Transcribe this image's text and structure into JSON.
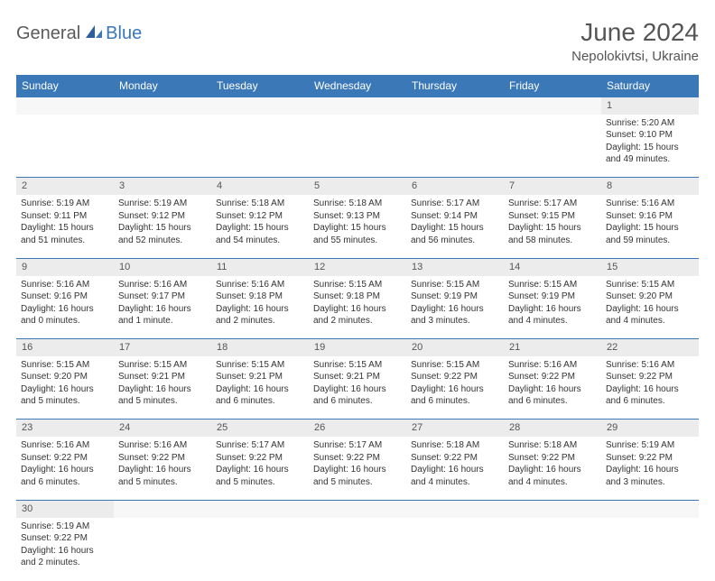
{
  "brand": {
    "part1": "General",
    "part2": "Blue"
  },
  "title": "June 2024",
  "location": "Nepolokivtsi, Ukraine",
  "colors": {
    "header_bg": "#3b78b8",
    "header_text": "#ffffff",
    "daynum_bg": "#ececec",
    "border": "#3b78b8",
    "brand_gray": "#5a5a5a",
    "brand_blue": "#3b78b8"
  },
  "dayHeaders": [
    "Sunday",
    "Monday",
    "Tuesday",
    "Wednesday",
    "Thursday",
    "Friday",
    "Saturday"
  ],
  "weeks": [
    [
      null,
      null,
      null,
      null,
      null,
      null,
      {
        "n": "1",
        "sr": "5:20 AM",
        "ss": "9:10 PM",
        "dl": "15 hours and 49 minutes."
      }
    ],
    [
      {
        "n": "2",
        "sr": "5:19 AM",
        "ss": "9:11 PM",
        "dl": "15 hours and 51 minutes."
      },
      {
        "n": "3",
        "sr": "5:19 AM",
        "ss": "9:12 PM",
        "dl": "15 hours and 52 minutes."
      },
      {
        "n": "4",
        "sr": "5:18 AM",
        "ss": "9:12 PM",
        "dl": "15 hours and 54 minutes."
      },
      {
        "n": "5",
        "sr": "5:18 AM",
        "ss": "9:13 PM",
        "dl": "15 hours and 55 minutes."
      },
      {
        "n": "6",
        "sr": "5:17 AM",
        "ss": "9:14 PM",
        "dl": "15 hours and 56 minutes."
      },
      {
        "n": "7",
        "sr": "5:17 AM",
        "ss": "9:15 PM",
        "dl": "15 hours and 58 minutes."
      },
      {
        "n": "8",
        "sr": "5:16 AM",
        "ss": "9:16 PM",
        "dl": "15 hours and 59 minutes."
      }
    ],
    [
      {
        "n": "9",
        "sr": "5:16 AM",
        "ss": "9:16 PM",
        "dl": "16 hours and 0 minutes."
      },
      {
        "n": "10",
        "sr": "5:16 AM",
        "ss": "9:17 PM",
        "dl": "16 hours and 1 minute."
      },
      {
        "n": "11",
        "sr": "5:16 AM",
        "ss": "9:18 PM",
        "dl": "16 hours and 2 minutes."
      },
      {
        "n": "12",
        "sr": "5:15 AM",
        "ss": "9:18 PM",
        "dl": "16 hours and 2 minutes."
      },
      {
        "n": "13",
        "sr": "5:15 AM",
        "ss": "9:19 PM",
        "dl": "16 hours and 3 minutes."
      },
      {
        "n": "14",
        "sr": "5:15 AM",
        "ss": "9:19 PM",
        "dl": "16 hours and 4 minutes."
      },
      {
        "n": "15",
        "sr": "5:15 AM",
        "ss": "9:20 PM",
        "dl": "16 hours and 4 minutes."
      }
    ],
    [
      {
        "n": "16",
        "sr": "5:15 AM",
        "ss": "9:20 PM",
        "dl": "16 hours and 5 minutes."
      },
      {
        "n": "17",
        "sr": "5:15 AM",
        "ss": "9:21 PM",
        "dl": "16 hours and 5 minutes."
      },
      {
        "n": "18",
        "sr": "5:15 AM",
        "ss": "9:21 PM",
        "dl": "16 hours and 6 minutes."
      },
      {
        "n": "19",
        "sr": "5:15 AM",
        "ss": "9:21 PM",
        "dl": "16 hours and 6 minutes."
      },
      {
        "n": "20",
        "sr": "5:15 AM",
        "ss": "9:22 PM",
        "dl": "16 hours and 6 minutes."
      },
      {
        "n": "21",
        "sr": "5:16 AM",
        "ss": "9:22 PM",
        "dl": "16 hours and 6 minutes."
      },
      {
        "n": "22",
        "sr": "5:16 AM",
        "ss": "9:22 PM",
        "dl": "16 hours and 6 minutes."
      }
    ],
    [
      {
        "n": "23",
        "sr": "5:16 AM",
        "ss": "9:22 PM",
        "dl": "16 hours and 6 minutes."
      },
      {
        "n": "24",
        "sr": "5:16 AM",
        "ss": "9:22 PM",
        "dl": "16 hours and 5 minutes."
      },
      {
        "n": "25",
        "sr": "5:17 AM",
        "ss": "9:22 PM",
        "dl": "16 hours and 5 minutes."
      },
      {
        "n": "26",
        "sr": "5:17 AM",
        "ss": "9:22 PM",
        "dl": "16 hours and 5 minutes."
      },
      {
        "n": "27",
        "sr": "5:18 AM",
        "ss": "9:22 PM",
        "dl": "16 hours and 4 minutes."
      },
      {
        "n": "28",
        "sr": "5:18 AM",
        "ss": "9:22 PM",
        "dl": "16 hours and 4 minutes."
      },
      {
        "n": "29",
        "sr": "5:19 AM",
        "ss": "9:22 PM",
        "dl": "16 hours and 3 minutes."
      }
    ],
    [
      {
        "n": "30",
        "sr": "5:19 AM",
        "ss": "9:22 PM",
        "dl": "16 hours and 2 minutes."
      },
      null,
      null,
      null,
      null,
      null,
      null
    ]
  ],
  "labels": {
    "sunrise": "Sunrise: ",
    "sunset": "Sunset: ",
    "daylight": "Daylight: "
  }
}
